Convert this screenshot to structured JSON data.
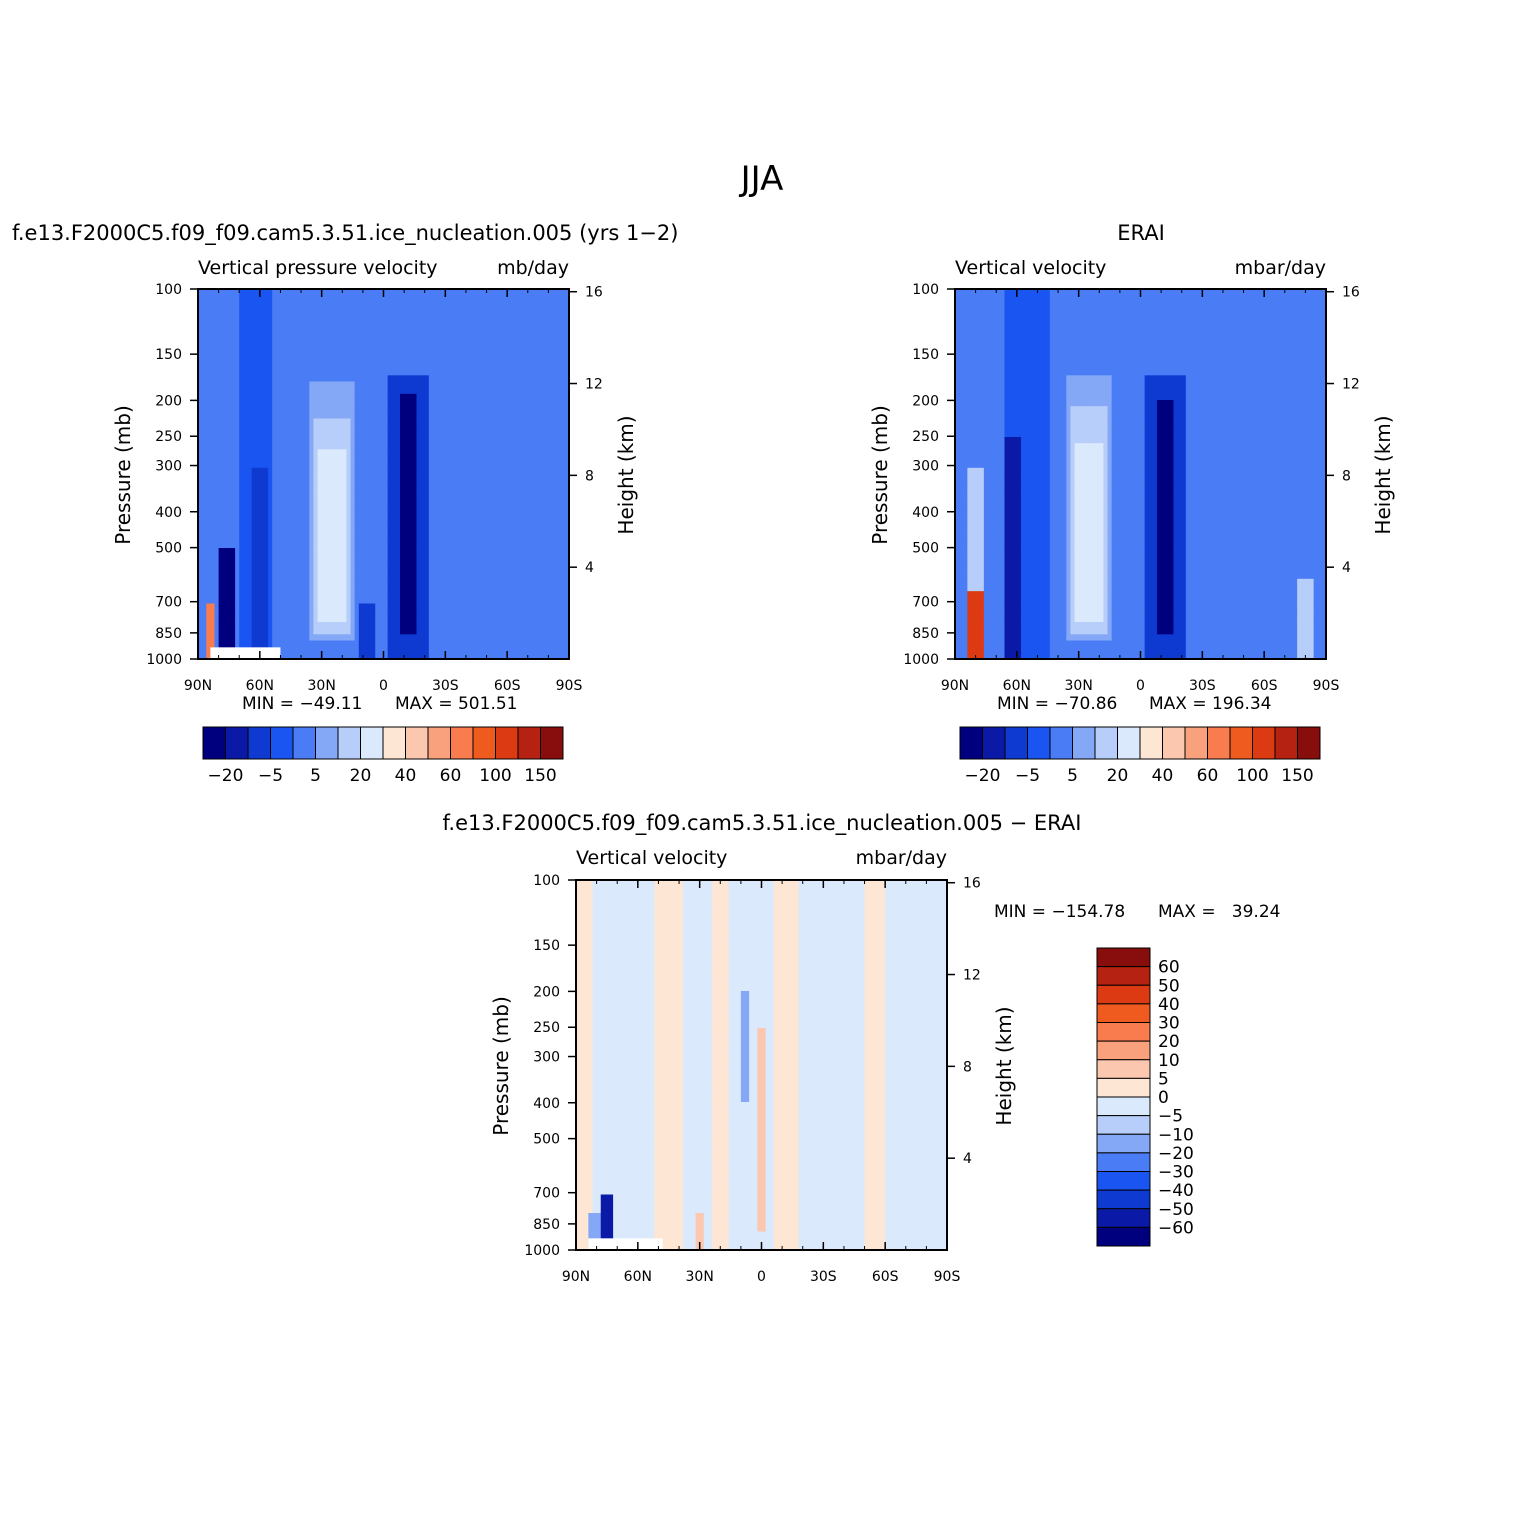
{
  "figure_title": "JJA",
  "colors": {
    "lev_scale": [
      "#00007f",
      "#0b1aa6",
      "#0f3ad1",
      "#1a55f2",
      "#4a7df5",
      "#84a8f6",
      "#b7cefa",
      "#dbe9fd",
      "#fde6d3",
      "#fbc7ae",
      "#f9a17c",
      "#f97c4f",
      "#ef5a1f",
      "#dc3a12",
      "#b52211",
      "#880e0e"
    ],
    "diff_scale": [
      "#00007f",
      "#0b1aa6",
      "#0f3ad1",
      "#1a55f2",
      "#4a7df5",
      "#84a8f6",
      "#b7cefa",
      "#dbe9fd",
      "#fde6d3",
      "#fbc7ae",
      "#f9a17c",
      "#f97c4f",
      "#ef5a1f",
      "#dc3a12",
      "#b52211",
      "#880e0e"
    ]
  },
  "chart_data": [
    {
      "type": "heatmap",
      "title": "f.e13.F2000C5.f09_f09.cam5.3.51.ice_nucleation.005 (yrs 1−2)",
      "subtitle_left": "Vertical pressure velocity",
      "subtitle_right": "mb/day",
      "xlabel": "",
      "ylabel": "Pressure (mb)",
      "ylabel_right": "Height (km)",
      "x_ticks": [
        "90N",
        "60N",
        "30N",
        "0",
        "30S",
        "60S",
        "90S"
      ],
      "y_ticks": [
        "100",
        "150",
        "200",
        "250",
        "300",
        "400",
        "500",
        "700",
        "850",
        "1000"
      ],
      "y_ticks_right": [
        "16",
        "12",
        "8",
        "4"
      ],
      "xlim": [
        90,
        -90
      ],
      "ylim": [
        1000,
        100
      ],
      "y_scale": "log",
      "min_text": "MIN = −49.11",
      "max_text": "MAX = 501.51",
      "colorbar_labels": [
        "−20",
        "−5",
        "5",
        "20",
        "40",
        "60",
        "100",
        "150"
      ],
      "field": {
        "background_level": 4,
        "features": [
          {
            "lat": 62,
            "p": 300,
            "level": 3,
            "w": 14,
            "top": 100,
            "bottom": 1000
          },
          {
            "lat": -12,
            "p": 300,
            "level": 2,
            "w": 18,
            "top": 170,
            "bottom": 1000
          },
          {
            "lat": -12,
            "p": 450,
            "level": 0,
            "w": 8,
            "top": 190,
            "bottom": 850
          },
          {
            "lat": 8,
            "p": 600,
            "level": 2,
            "w": 8,
            "top": 700,
            "bottom": 1000
          },
          {
            "lat": 25,
            "p": 400,
            "level": 5,
            "w": 22,
            "top": 180,
            "bottom": 900
          },
          {
            "lat": 25,
            "p": 450,
            "level": 6,
            "w": 16,
            "top": 220,
            "bottom": 850
          },
          {
            "lat": 25,
            "p": 500,
            "level": 7,
            "w": 12,
            "top": 270,
            "bottom": 800
          },
          {
            "lat": 60,
            "p": 600,
            "level": 2,
            "w": 6,
            "top": 300,
            "bottom": 1000
          },
          {
            "lat": 76,
            "p": 750,
            "level": 0,
            "w": 6,
            "top": 500,
            "bottom": 1000
          },
          {
            "lat": 84,
            "p": 850,
            "level": 11,
            "w": 4,
            "top": 700,
            "bottom": 1000
          }
        ]
      },
      "missing_region": {
        "lat_from": 50,
        "lat_to": 84,
        "p_from": 930,
        "p_to": 1000
      }
    },
    {
      "type": "heatmap",
      "title": "ERAI",
      "subtitle_left": "Vertical velocity",
      "subtitle_right": "mbar/day",
      "xlabel": "",
      "ylabel": "Pressure (mb)",
      "ylabel_right": "Height (km)",
      "x_ticks": [
        "90N",
        "60N",
        "30N",
        "0",
        "30S",
        "60S",
        "90S"
      ],
      "y_ticks": [
        "100",
        "150",
        "200",
        "250",
        "300",
        "400",
        "500",
        "700",
        "850",
        "1000"
      ],
      "y_ticks_right": [
        "16",
        "12",
        "8",
        "4"
      ],
      "xlim": [
        90,
        -90
      ],
      "ylim": [
        1000,
        100
      ],
      "y_scale": "log",
      "min_text": "MIN = −70.86",
      "max_text": "MAX = 196.34",
      "colorbar_labels": [
        "−20",
        "−5",
        "5",
        "20",
        "40",
        "60",
        "100",
        "150"
      ],
      "field": {
        "background_level": 4,
        "features": [
          {
            "lat": 55,
            "p": 300,
            "level": 3,
            "w": 20,
            "top": 100,
            "bottom": 1000
          },
          {
            "lat": -12,
            "p": 300,
            "level": 2,
            "w": 18,
            "top": 170,
            "bottom": 1000
          },
          {
            "lat": -12,
            "p": 450,
            "level": 0,
            "w": 8,
            "top": 200,
            "bottom": 850
          },
          {
            "lat": -80,
            "p": 800,
            "level": 6,
            "w": 8,
            "top": 600,
            "bottom": 1000
          },
          {
            "lat": 25,
            "p": 400,
            "level": 5,
            "w": 22,
            "top": 170,
            "bottom": 900
          },
          {
            "lat": 25,
            "p": 450,
            "level": 6,
            "w": 16,
            "top": 210,
            "bottom": 850
          },
          {
            "lat": 25,
            "p": 500,
            "level": 7,
            "w": 12,
            "top": 260,
            "bottom": 800
          },
          {
            "lat": 62,
            "p": 600,
            "level": 1,
            "w": 6,
            "top": 250,
            "bottom": 1000
          },
          {
            "lat": 80,
            "p": 500,
            "level": 6,
            "w": 8,
            "top": 300,
            "bottom": 700
          },
          {
            "lat": 80,
            "p": 850,
            "level": 13,
            "w": 8,
            "top": 650,
            "bottom": 1000
          }
        ]
      }
    },
    {
      "type": "heatmap",
      "title": "f.e13.F2000C5.f09_f09.cam5.3.51.ice_nucleation.005 − ERAI",
      "subtitle_left": "Vertical velocity",
      "subtitle_right": "mbar/day",
      "xlabel": "",
      "ylabel": "Pressure (mb)",
      "ylabel_right": "Height (km)",
      "x_ticks": [
        "90N",
        "60N",
        "30N",
        "0",
        "30S",
        "60S",
        "90S"
      ],
      "y_ticks": [
        "100",
        "150",
        "200",
        "250",
        "300",
        "400",
        "500",
        "700",
        "850",
        "1000"
      ],
      "y_ticks_right": [
        "16",
        "12",
        "8",
        "4"
      ],
      "xlim": [
        90,
        -90
      ],
      "ylim": [
        1000,
        100
      ],
      "y_scale": "log",
      "min_text": "MIN = −154.78",
      "max_text": "MAX =   39.24",
      "colorbar_labels": [
        "60",
        "50",
        "40",
        "30",
        "20",
        "10",
        "5",
        "0",
        "−5",
        "−10",
        "−20",
        "−30",
        "−40",
        "−50",
        "−60"
      ],
      "field": {
        "background_level": 7,
        "features": [
          {
            "lat": 88,
            "p": 400,
            "level": 8,
            "w": 10,
            "top": 100,
            "bottom": 1000
          },
          {
            "lat": 45,
            "p": 400,
            "level": 8,
            "w": 12,
            "top": 100,
            "bottom": 1000
          },
          {
            "lat": 20,
            "p": 400,
            "level": 8,
            "w": 8,
            "top": 100,
            "bottom": 1000
          },
          {
            "lat": -12,
            "p": 400,
            "level": 8,
            "w": 10,
            "top": 100,
            "bottom": 1000
          },
          {
            "lat": -55,
            "p": 400,
            "level": 8,
            "w": 8,
            "top": 100,
            "bottom": 1000
          },
          {
            "lat": 0,
            "p": 400,
            "level": 9,
            "w": 2,
            "top": 250,
            "bottom": 900
          },
          {
            "lat": 8,
            "p": 300,
            "level": 5,
            "w": 2,
            "top": 200,
            "bottom": 400
          },
          {
            "lat": 80,
            "p": 950,
            "level": 5,
            "w": 8,
            "top": 800,
            "bottom": 1000
          },
          {
            "lat": 30,
            "p": 900,
            "level": 9,
            "w": 4,
            "top": 800,
            "bottom": 1000
          },
          {
            "lat": 75,
            "p": 850,
            "level": 1,
            "w": 6,
            "top": 700,
            "bottom": 1000
          }
        ]
      },
      "missing_region": {
        "lat_from": 48,
        "lat_to": 84,
        "p_from": 930,
        "p_to": 1000
      }
    }
  ]
}
